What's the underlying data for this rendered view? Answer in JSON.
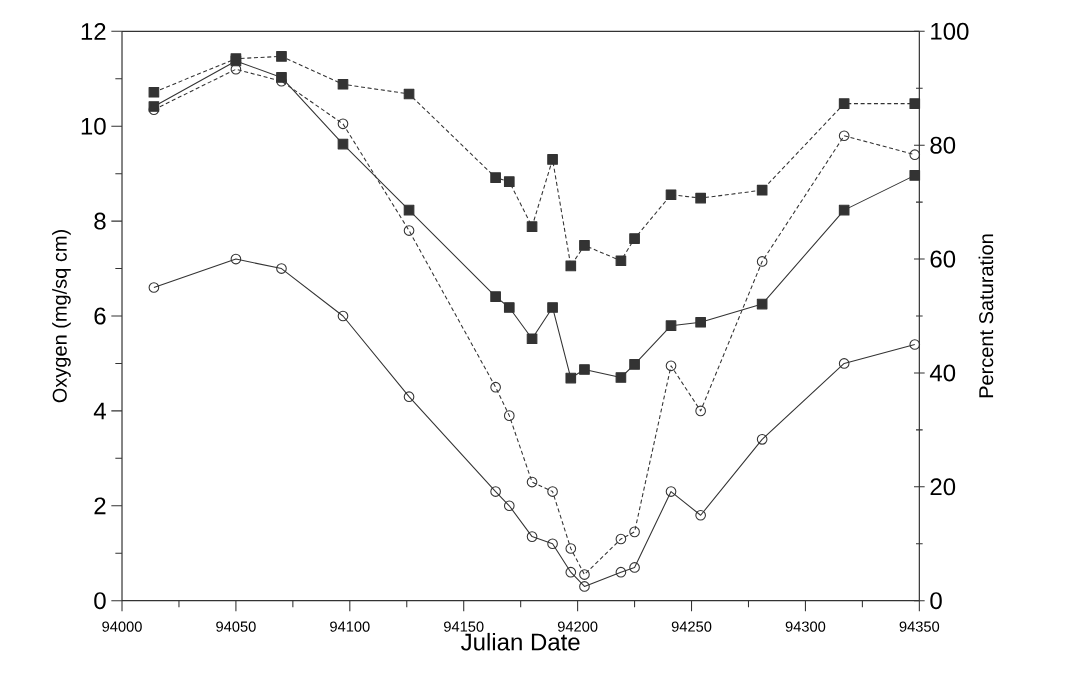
{
  "chart_data": {
    "type": "line",
    "xlabel": "Julian Date",
    "ylabel": "Oxygen (mg/sq cm)",
    "y2label": "Percent Saturation",
    "x": [
      94014,
      94050,
      94070,
      94097,
      94126,
      94164,
      94170,
      94180,
      94189,
      94197,
      94203,
      94219,
      94225,
      94241,
      94254,
      94281,
      94317,
      94348
    ],
    "xlim": [
      94000,
      94350
    ],
    "xticks": [
      94000,
      94050,
      94100,
      94150,
      94200,
      94250,
      94300,
      94350
    ],
    "ylim": [
      0,
      12
    ],
    "yticks": [
      0,
      2,
      4,
      6,
      8,
      10,
      12
    ],
    "y2lim": [
      0,
      100
    ],
    "y2ticks": [
      0,
      20,
      40,
      60,
      80,
      100
    ],
    "series": [
      {
        "color": "#333333",
        "axis": "y",
        "marker": "circle",
        "line_style": "solid",
        "values": [
          6.6,
          7.2,
          7.0,
          6.0,
          4.3,
          2.3,
          2.0,
          1.35,
          1.2,
          0.6,
          0.3,
          0.6,
          0.7,
          2.3,
          1.8,
          3.4,
          5.0,
          5.4
        ]
      },
      {
        "color": "#333333",
        "axis": "y",
        "marker": "circle",
        "line_style": "dashed",
        "values": [
          10.35,
          11.2,
          10.95,
          10.05,
          7.8,
          4.5,
          3.9,
          2.5,
          2.3,
          1.1,
          0.55,
          1.3,
          1.45,
          4.95,
          4.0,
          7.15,
          9.8,
          9.4
        ]
      },
      {
        "color": "#333333",
        "axis": "y2",
        "marker": "square",
        "line_style": "solid",
        "values": [
          86.8,
          94.8,
          91.9,
          80.2,
          68.6,
          53.4,
          51.5,
          46.0,
          51.5,
          39.1,
          40.6,
          39.2,
          41.5,
          48.3,
          48.9,
          52.1,
          68.6,
          74.7
        ]
      },
      {
        "color": "#333333",
        "axis": "y2",
        "marker": "square",
        "line_style": "dashed",
        "values": [
          89.3,
          95.2,
          95.6,
          90.7,
          89.0,
          74.3,
          73.6,
          65.7,
          77.5,
          58.8,
          62.4,
          59.7,
          63.6,
          71.3,
          70.7,
          72.1,
          87.3,
          87.3
        ]
      }
    ]
  }
}
